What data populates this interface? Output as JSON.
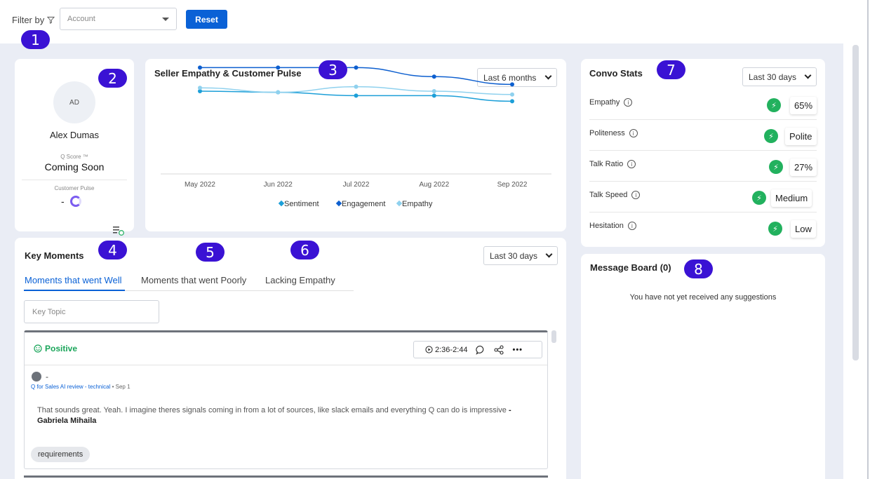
{
  "filter": {
    "label": "Filter by",
    "account_placeholder": "Account",
    "reset_label": "Reset"
  },
  "badges": [
    "1",
    "2",
    "3",
    "4",
    "5",
    "6",
    "7",
    "8"
  ],
  "profile": {
    "avatar_initials": "AD",
    "name": "Alex Dumas",
    "qscore_label": "Q Score ™",
    "qscore_value": "Coming Soon",
    "pulse_label": "Customer Pulse",
    "pulse_value": "-"
  },
  "pulse_chart": {
    "title": "Seller Empathy & Customer Pulse",
    "range": "Last 6 months"
  },
  "chart_data": {
    "type": "line",
    "title": "",
    "categories": [
      "May 2022",
      "Jun 2022",
      "Jul 2022",
      "Aug 2022",
      "Sep 2022"
    ],
    "series": [
      {
        "name": "Sentiment",
        "color": "#1c9fd8",
        "values": [
          70,
          69,
          66,
          66,
          61
        ]
      },
      {
        "name": "Engagement",
        "color": "#0d5fcf",
        "values": [
          91,
          91,
          91,
          83,
          76
        ]
      },
      {
        "name": "Empathy",
        "color": "#8fd1ee",
        "values": [
          73,
          69,
          74,
          70,
          67
        ]
      }
    ],
    "ylim": [
      0,
      100
    ],
    "legend": "bottom",
    "grid": false
  },
  "key_moments": {
    "title": "Key Moments",
    "range": "Last 30 days",
    "tabs": [
      "Moments that went Well",
      "Moments that went Poorly",
      "Lacking Empathy"
    ],
    "topic_placeholder": "Key Topic",
    "moment": {
      "sentiment": "Positive",
      "time_range": "2:36-2:44",
      "speaker": "-",
      "call_title": "Q for Sales AI review - technical",
      "date": "• Sep 1",
      "quote": "That sounds great. Yeah. I imagine theres signals coming in from a lot of sources, like slack emails and everything Q can do is impressive",
      "quote_sep": " - ",
      "author": "Gabriela Mihaila",
      "tag": "requirements"
    }
  },
  "convo_stats": {
    "title": "Convo Stats",
    "range": "Last 30 days",
    "rows": [
      {
        "label": "Empathy",
        "value": "65%"
      },
      {
        "label": "Politeness",
        "value": "Polite"
      },
      {
        "label": "Talk Ratio",
        "value": "27%"
      },
      {
        "label": "Talk Speed",
        "value": "Medium"
      },
      {
        "label": "Hesitation",
        "value": "Low"
      }
    ]
  },
  "message_board": {
    "title": "Message Board (0)",
    "empty_text": "You have not yet received any suggestions"
  }
}
